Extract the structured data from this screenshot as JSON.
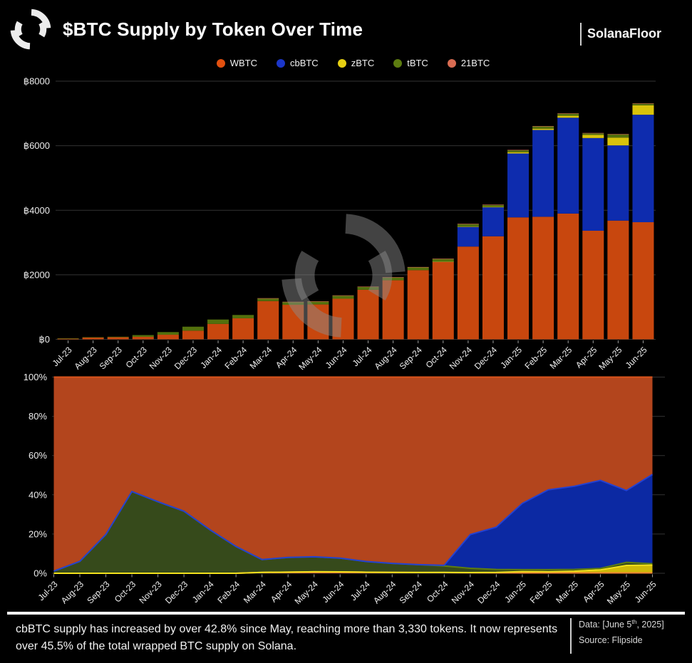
{
  "header": {
    "title": "$BTC Supply by Token Over Time",
    "brand": "SolanaFloor"
  },
  "icons": {
    "header_logo": "solanafloor-spinner-icon",
    "chart_watermark": "solanafloor-spinner-icon"
  },
  "colors": {
    "background": "#000000",
    "gridline": "#333333",
    "axis_text": "#ececec",
    "watermark": "rgba(140,140,140,0.48)"
  },
  "chart_data": [
    {
      "type": "bar",
      "subtype": "stacked-vertical",
      "title": "$BTC Supply by Token Over Time",
      "categories": [
        "Jul-23",
        "Aug-23",
        "Sep-23",
        "Oct-23",
        "Nov-23",
        "Dec-23",
        "Jan-24",
        "Feb-24",
        "Mar-24",
        "Apr-24",
        "May-24",
        "Jun-24",
        "Jul-24",
        "Aug-24",
        "Sep-24",
        "Oct-24",
        "Nov-24",
        "Dec-24",
        "Jan-25",
        "Feb-25",
        "Mar-25",
        "Apr-25",
        "May-25",
        "Jun-25"
      ],
      "series": [
        {
          "name": "WBTC",
          "color": "#e2500f",
          "bar_color": "#c8470e",
          "area_color": "#b3451d",
          "edge_color": "#d9531b",
          "values": [
            28,
            62,
            65,
            77,
            143,
            268,
            478,
            652,
            1186,
            1070,
            1080,
            1258,
            1536,
            1830,
            2143,
            2400,
            2875,
            3194,
            3780,
            3798,
            3898,
            3366,
            3680,
            3630
          ]
        },
        {
          "name": "cbBTC",
          "color": "#1b36c9",
          "bar_color": "#0e2cae",
          "area_color": "#0c29a3",
          "edge_color": "#2441d2",
          "values": [
            0,
            0,
            0,
            0,
            0,
            0,
            0,
            0,
            0,
            0,
            0,
            0,
            0,
            0,
            0,
            8,
            615,
            900,
            1980,
            2690,
            2970,
            2872,
            2330,
            3330
          ]
        },
        {
          "name": "zBTC",
          "color": "#e7d012",
          "bar_color": "#d9c30b",
          "area_color": "#cfba09",
          "edge_color": "#f2e11c",
          "values": [
            0,
            0,
            0,
            0,
            0,
            0,
            0,
            0,
            0,
            0,
            0,
            0,
            0,
            0,
            0,
            2,
            4,
            10,
            40,
            40,
            60,
            100,
            242,
            292
          ]
        },
        {
          "name": "tBTC",
          "color": "#5d7d10",
          "bar_color": "#53700d",
          "area_color": "#364a1b",
          "edge_color": "#5d7d10",
          "values": [
            0.3,
            4,
            16,
            55,
            82,
            124,
            136,
            103,
            83,
            87,
            90,
            95,
            89,
            88,
            90,
            82,
            78,
            62,
            60,
            70,
            65,
            45,
            100,
            50
          ]
        },
        {
          "name": "21BTC",
          "color": "#d96c52",
          "bar_color": "#d96c52",
          "area_color": "#e0722c",
          "edge_color": "#ef8434",
          "values": [
            0,
            0,
            0,
            0,
            0,
            0,
            0,
            0,
            6,
            7,
            9,
            10,
            9,
            9,
            9,
            9,
            9,
            9,
            10,
            12,
            12,
            12,
            12,
            12
          ]
        }
      ],
      "stack_order": [
        "WBTC",
        "cbBTC",
        "zBTC",
        "tBTC",
        "21BTC"
      ],
      "ylim": [
        0,
        8000
      ],
      "y_tick_values": [
        0,
        2000,
        4000,
        6000,
        8000
      ],
      "y_tick_labels": [
        "฿0",
        "฿2000",
        "฿4000",
        "฿6000",
        "฿8000"
      ],
      "currency_prefix": "฿",
      "grid": true,
      "legend_position": "top-center"
    },
    {
      "type": "area",
      "subtype": "100%-stacked",
      "note": "Same monthly series as the bar chart, normalized to 100% per month",
      "categories": [
        "Jul-23",
        "Aug-23",
        "Sep-23",
        "Oct-23",
        "Nov-23",
        "Dec-23",
        "Jan-24",
        "Feb-24",
        "Mar-24",
        "Apr-24",
        "May-24",
        "Jun-24",
        "Jul-24",
        "Aug-24",
        "Sep-24",
        "Oct-24",
        "Nov-24",
        "Dec-24",
        "Jan-25",
        "Feb-25",
        "Mar-25",
        "Apr-25",
        "May-25",
        "Jun-25"
      ],
      "stack_order": [
        "21BTC",
        "zBTC",
        "tBTC",
        "cbBTC",
        "WBTC"
      ],
      "ylim": [
        0,
        100
      ],
      "y_tick_values": [
        0,
        20,
        40,
        60,
        80,
        100
      ],
      "y_tick_labels": [
        "0%",
        "20%",
        "40%",
        "60%",
        "80%",
        "100%"
      ],
      "grid": true
    }
  ],
  "footer": {
    "note": "cbBTC supply has increased by over 42.8% since May, reaching more than 3,330 tokens. It now represents over 45.5% of the total wrapped BTC supply on Solana.",
    "data_prefix": "Data: [June 5",
    "data_sup": "th",
    "data_suffix": ", 2025]",
    "source": "Source: Flipside"
  }
}
